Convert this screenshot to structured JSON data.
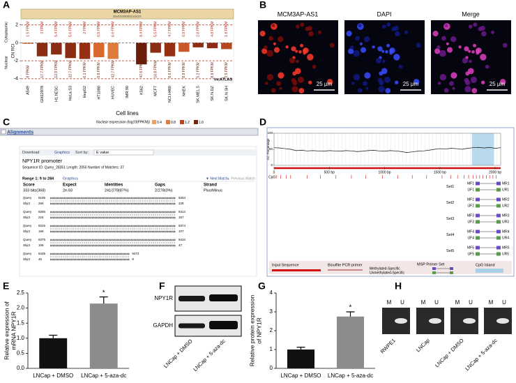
{
  "panel_labels": [
    "A",
    "B",
    "C",
    "D",
    "E",
    "F",
    "G",
    "H"
  ],
  "chart_data": [
    {
      "type": "diverging-bar",
      "title": "MCM3AP-AS1",
      "subtitle": "ENSG00000215424",
      "y_label": "CN RCI",
      "side_labels": [
        "Cytoplasmic",
        "Nuclear"
      ],
      "x_label": "Cell lines",
      "source": "lncATLAS",
      "categories": [
        "A549",
        "GM12878",
        "H1.hESC",
        "HeLa.S3",
        "HepG2",
        "HT1080",
        "HUVEC",
        "IMR.90",
        "K562",
        "MCF7",
        "NCI.H460",
        "NHEK",
        "SK.MEL.5",
        "SK.N.DZ",
        "SK.N.SH"
      ],
      "values": [
        -0.1,
        -1.5,
        -1.3,
        -1.7,
        -1.8,
        -1.6,
        -1.8,
        null,
        -2.4,
        -1.1,
        -1.5,
        -1.0,
        -0.5,
        -0.6,
        -0.7
      ],
      "colors": [
        "#c9592a",
        "#8b2d12",
        "#8b2d12",
        "#8b2d12",
        "#952f12",
        "#d9692f",
        "#e07b3c",
        "#8b2d12",
        "#6b1d0c",
        "#8b2d12",
        "#952f12",
        "#c9592a",
        "#8b2d12",
        "#8b2d12",
        "#b5461d"
      ],
      "cytoplasmic_labels": [
        "1.5 FPKM",
        "3 FPKM",
        "5.4 FPKM",
        "5.6 FPKM",
        "2 FPKM",
        "0.9 FPKM",
        "6.6 FPKM",
        null,
        "8.4 FPKM",
        "5.5 FPKM",
        "4.7 FPKM",
        "0.9 FPKM",
        "2.8 FPKM",
        "4.8 FPKM",
        "1.8 FPKM"
      ],
      "nuclear_labels": [
        "8 FPKM",
        "17.7 FPKM",
        "12.9 FPKM",
        "32.7 FPKM",
        "6.1 FPKM",
        "9.9 FPKM",
        "42.7 FPKM",
        null,
        "47.6 FPKM",
        "16.8 FPKM",
        "8.6 FPKM",
        "8.9 FPKM",
        "5.2 FPKM",
        "8.9 FPKM",
        "3.5 FPKM"
      ],
      "ylim": [
        -4.4,
        2.6
      ],
      "yticks": [
        -4,
        -2,
        0,
        2
      ],
      "grid": true,
      "legend": {
        "title": "Nuclear expression (log10(FPKM))",
        "values": [
          0.4,
          0.8,
          1.2,
          1.6
        ],
        "colors": [
          "#f0a060",
          "#e07b3c",
          "#b5461d",
          "#7a2410"
        ]
      }
    },
    {
      "type": "bar",
      "y_label": [
        "Relative expression of",
        "mRNA NPY1R"
      ],
      "categories": [
        "LNCap + DMSO",
        "LNCap + 5-aza-dc"
      ],
      "values": [
        1.0,
        2.15
      ],
      "errors": [
        0.1,
        0.22
      ],
      "colors": [
        "#111111",
        "#8c8c8c"
      ],
      "annotations": [
        null,
        "*"
      ],
      "ylim": [
        0,
        2.5
      ],
      "yticks": [
        {
          "value": 0,
          "label": "0.0"
        },
        0.5,
        {
          "value": 1,
          "label": "1.0"
        },
        1.5,
        {
          "value": 2,
          "label": "2.0"
        },
        2.5
      ]
    },
    {
      "type": "bar",
      "y_label": [
        "Relative protein expression",
        "of NPY1R"
      ],
      "categories": [
        "LNCap + DMSO",
        "LNCap + 5-aza-dc"
      ],
      "values": [
        1.0,
        2.75
      ],
      "errors": [
        0.12,
        0.25
      ],
      "colors": [
        "#111111",
        "#8c8c8c"
      ],
      "annotations": [
        null,
        "*"
      ],
      "ylim": [
        0,
        4
      ],
      "yticks": [
        0,
        1,
        2,
        3,
        4
      ]
    },
    {
      "type": "line",
      "y_label": "GC Percentage",
      "color": "#111111",
      "xlim": [
        0,
        2050
      ],
      "ylim": [
        0,
        100
      ],
      "yticks": [
        0,
        50,
        100
      ],
      "xticks": [
        0,
        {
          "value": 500,
          "label": "500 bp"
        },
        {
          "value": 1000,
          "label": "1000 bp"
        },
        {
          "value": 1500,
          "label": "1500 bp"
        },
        {
          "value": 2000,
          "label": "2000 bp"
        }
      ],
      "x": [
        0,
        50,
        100,
        150,
        200,
        250,
        300,
        350,
        400,
        450,
        500,
        550,
        600,
        650,
        700,
        750,
        800,
        850,
        900,
        950,
        1000,
        1050,
        1100,
        1150,
        1200,
        1250,
        1300,
        1350,
        1400,
        1450,
        1500,
        1550,
        1600,
        1650,
        1700,
        1750,
        1800,
        1850,
        1900,
        1950,
        2000,
        2050
      ],
      "values": [
        55,
        54,
        52,
        50,
        46,
        47,
        45,
        46,
        45,
        44,
        46,
        45,
        44,
        46,
        45,
        43,
        44,
        46,
        47,
        45,
        44,
        46,
        45,
        43,
        40,
        42,
        44,
        45,
        47,
        50,
        52,
        51,
        53,
        52,
        50,
        53,
        55,
        56,
        54,
        56,
        53,
        55
      ],
      "cpg_island": [
        1790,
        1990
      ],
      "cpg_label": "CpG",
      "cpg_sites": [
        20,
        60,
        110,
        150,
        300,
        420,
        560,
        700,
        830,
        980,
        1120,
        1250,
        1380,
        1520,
        1600,
        1660,
        1720,
        1760,
        1800,
        1830,
        1860,
        1890,
        1920,
        1950,
        1980,
        2010
      ]
    }
  ],
  "micrographs": {
    "titles": [
      "MCM3AP-AS1",
      "DAPI",
      "Merge"
    ],
    "scale_bar": "25 μm"
  },
  "alignment": {
    "header": "Alignments",
    "toolbar": [
      "Download",
      "Graphics",
      "Sort by:",
      "E value"
    ],
    "title": "NPY1R promoter",
    "sequence_info": "Sequence ID: Query_28351  Length: 2050  Number of Matches: 37",
    "range": "Range 1: 9 to 284",
    "range_link": "Graphics",
    "next": "▼ Next Match",
    "previous": "▲ Previous Match",
    "columns": [
      "Score",
      "Expect",
      "Identities",
      "Gaps",
      "Strand"
    ],
    "row": [
      "333 bits(368)",
      "2e-93",
      "241/278(87%)",
      "2/278(0%)",
      "Plus/Minus"
    ],
    "query_label": "Query",
    "sbjct_label": "Sbjct",
    "blocks": [
      {
        "query": [
          9195,
          9254
        ],
        "sbjct": [
          284,
          225
        ]
      },
      {
        "query": [
          9255,
          9314
        ],
        "sbjct": [
          224,
          167
        ]
      },
      {
        "query": [
          9315,
          9374
        ],
        "sbjct": [
          166,
          107
        ]
      },
      {
        "query": [
          9375,
          9434
        ],
        "sbjct": [
          106,
          47
        ]
      },
      {
        "query": [
          9435,
          9472
        ],
        "sbjct": [
          46,
          9
        ]
      }
    ]
  },
  "methylation": {
    "sets": [
      "Set1",
      "Set2",
      "Set3",
      "Set4",
      "Set5"
    ],
    "primers": [
      [
        "MF1",
        "MR1",
        "UF1",
        "UR1"
      ],
      [
        "MF2",
        "MR2",
        "UF2",
        "UR2"
      ],
      [
        "MF3",
        "MR3",
        "UF3",
        "UR3"
      ],
      [
        "MF4",
        "MR4",
        "UF4",
        "UR4"
      ],
      [
        "MF5",
        "MR5",
        "UF5",
        "UR5"
      ]
    ],
    "legend": [
      "Input Sequence",
      "Bisulfite PCR primer",
      "MSP Primer Set",
      "Methylated-Specific",
      "Unmethylated-Specific",
      "CpG Island"
    ]
  },
  "western_blot": {
    "bands": [
      "NPY1R",
      "GAPDH"
    ],
    "lanes": [
      "LNCap + DMSO",
      "LNCap + 5-aza-dc"
    ]
  },
  "msp_gel": {
    "lane_labels": [
      "M",
      "U"
    ],
    "samples": [
      "RWPE1",
      "LNCap",
      "LNCap + DMSO",
      "LNCap + 5-aza-dc"
    ]
  }
}
